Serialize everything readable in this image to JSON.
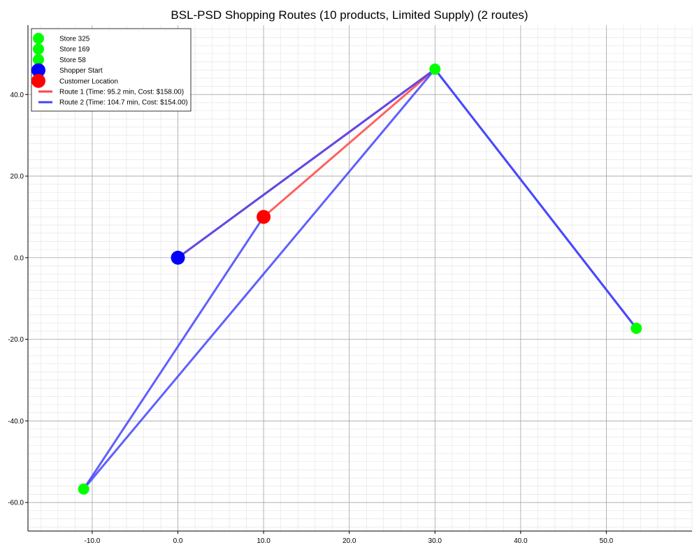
{
  "chart_data": {
    "type": "scatter",
    "title": "BSL-PSD Shopping Routes (10 products, Limited Supply) (2 routes)",
    "xlabel": "",
    "ylabel": "",
    "xlim": [
      -17.5,
      60
    ],
    "ylim": [
      -67,
      57
    ],
    "x_ticks": [
      -10,
      0,
      10,
      20,
      30,
      40,
      50
    ],
    "x_tick_labels": [
      "-10.0",
      "0.0",
      "10.0",
      "20.0",
      "30.0",
      "40.0",
      "50.0"
    ],
    "y_ticks": [
      -60,
      -40,
      -20,
      0,
      20,
      40
    ],
    "y_tick_labels": [
      "-60.0",
      "-40.0",
      "-20.0",
      "0.0",
      "20.0",
      "40.0"
    ],
    "grid": "major and minor",
    "legend_position": "top-left",
    "points": [
      {
        "name": "Store 325",
        "x": 30.0,
        "y": 46.2,
        "color": "#00ff00",
        "size": "small"
      },
      {
        "name": "Store 169",
        "x": 53.5,
        "y": -17.3,
        "color": "#00ff00",
        "size": "small"
      },
      {
        "name": "Store 58",
        "x": -11.0,
        "y": -56.7,
        "color": "#00ff00",
        "size": "small"
      },
      {
        "name": "Shopper Start",
        "x": 0.0,
        "y": 0.0,
        "color": "#0000ff",
        "size": "large"
      },
      {
        "name": "Customer Location",
        "x": 10.0,
        "y": 10.0,
        "color": "#ff0000",
        "size": "large"
      }
    ],
    "routes": [
      {
        "name": "Route 1 (Time: 95.2 min, Cost: $158.00)",
        "color": "#ff4444",
        "path": [
          [
            0,
            0
          ],
          [
            30.0,
            46.2
          ],
          [
            10.0,
            10.0
          ]
        ]
      },
      {
        "name": "Route 2 (Time: 104.7 min, Cost: $154.00)",
        "color": "#4444ff",
        "path": [
          [
            0,
            0
          ],
          [
            30.0,
            46.2
          ],
          [
            53.5,
            -17.3
          ],
          [
            30.0,
            46.2
          ],
          [
            -11.0,
            -56.7
          ],
          [
            10.0,
            10.0
          ]
        ]
      }
    ]
  }
}
